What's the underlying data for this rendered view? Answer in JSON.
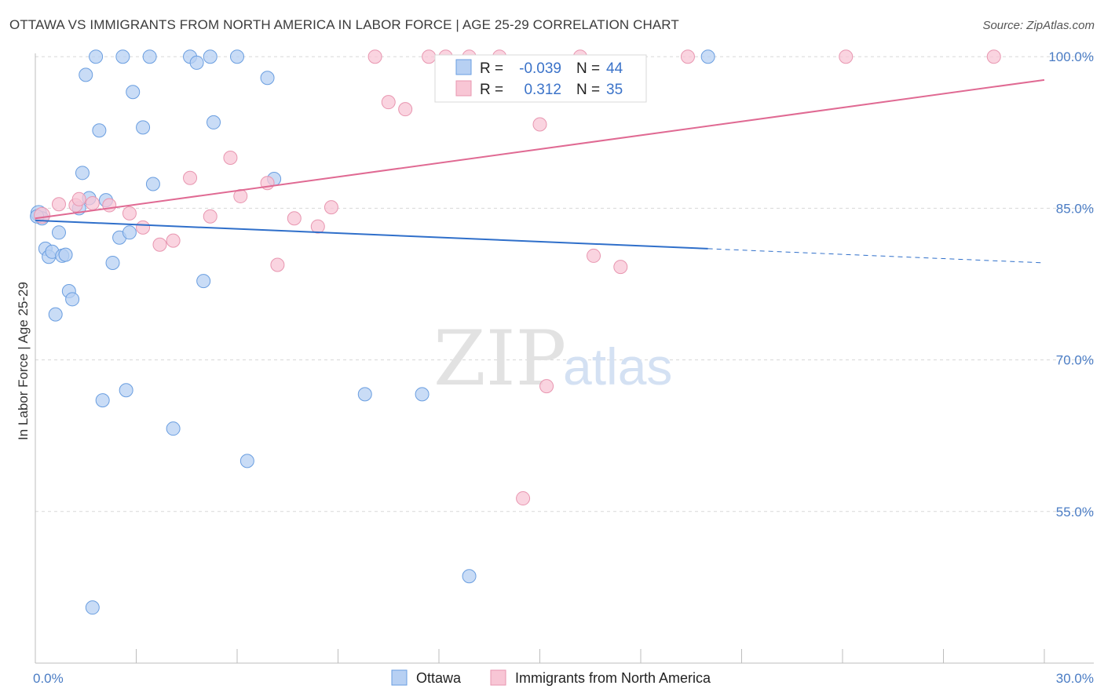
{
  "title": "OTTAWA VS IMMIGRANTS FROM NORTH AMERICA IN LABOR FORCE | AGE 25-29 CORRELATION CHART",
  "source": "Source: ZipAtlas.com",
  "watermark": {
    "zip": "ZIP",
    "atlas": "atlas"
  },
  "colors": {
    "ottawa_fill": "#b7d0f3",
    "ottawa_stroke": "#6a9ee0",
    "ottawa_line": "#2f6fca",
    "immigrants_fill": "#f8c6d5",
    "immigrants_stroke": "#e896b0",
    "immigrants_line": "#e06a93",
    "grid": "#d8d8d8",
    "tick_text": "#4a7cc4"
  },
  "legend": {
    "rows": [
      {
        "r_label": "R =",
        "r_value": "-0.039",
        "n_label": "N =",
        "n_value": "44"
      },
      {
        "r_label": "R =",
        "r_value": "0.312",
        "n_label": "N =",
        "n_value": "35"
      }
    ]
  },
  "chart_data": {
    "type": "scatter",
    "title": "OTTAWA VS IMMIGRANTS FROM NORTH AMERICA IN LABOR FORCE | AGE 25-29 CORRELATION CHART",
    "xlabel": "",
    "ylabel": "In Labor Force | Age 25-29",
    "xlim": [
      0,
      30
    ],
    "ylim": [
      40,
      102.5
    ],
    "x_tick_labels": [
      {
        "value": 0,
        "label": "0.0%"
      },
      {
        "value": 30,
        "label": "30.0%"
      }
    ],
    "y_tick_labels": [
      {
        "value": 100,
        "label": "100.0%"
      },
      {
        "value": 85,
        "label": "85.0%"
      },
      {
        "value": 70,
        "label": "70.0%"
      },
      {
        "value": 55,
        "label": "55.0%"
      }
    ],
    "grid": true,
    "legend_position": "top-center",
    "series": [
      {
        "name": "Ottawa",
        "r": -0.039,
        "n": 44,
        "trend": {
          "x": [
            0,
            20
          ],
          "y": [
            83.8,
            81.0
          ],
          "dashed_to_x": 30,
          "dashed_to_y": 79.6
        },
        "points": [
          [
            0.1,
            84.5
          ],
          [
            0.2,
            84.0
          ],
          [
            0.3,
            81.0
          ],
          [
            0.4,
            80.2
          ],
          [
            0.5,
            80.7
          ],
          [
            0.6,
            74.5
          ],
          [
            0.7,
            82.6
          ],
          [
            0.8,
            80.3
          ],
          [
            0.9,
            80.4
          ],
          [
            1.0,
            76.8
          ],
          [
            1.1,
            76.0
          ],
          [
            1.3,
            85.0
          ],
          [
            1.4,
            88.5
          ],
          [
            1.5,
            98.2
          ],
          [
            1.6,
            86.0
          ],
          [
            1.7,
            45.5
          ],
          [
            1.8,
            100.0
          ],
          [
            1.9,
            92.7
          ],
          [
            2.0,
            66.0
          ],
          [
            2.1,
            85.8
          ],
          [
            2.3,
            79.6
          ],
          [
            2.5,
            82.1
          ],
          [
            2.6,
            100.0
          ],
          [
            2.7,
            67.0
          ],
          [
            2.8,
            82.6
          ],
          [
            2.9,
            96.5
          ],
          [
            3.2,
            93.0
          ],
          [
            3.4,
            100.0
          ],
          [
            3.5,
            87.4
          ],
          [
            4.1,
            63.2
          ],
          [
            4.6,
            100.0
          ],
          [
            4.8,
            99.4
          ],
          [
            5.0,
            77.8
          ],
          [
            5.2,
            100.0
          ],
          [
            5.3,
            93.5
          ],
          [
            6.0,
            100.0
          ],
          [
            6.3,
            60.0
          ],
          [
            6.9,
            97.9
          ],
          [
            7.1,
            87.9
          ],
          [
            9.8,
            66.6
          ],
          [
            11.5,
            66.6
          ],
          [
            12.9,
            48.6
          ],
          [
            20.0,
            100.0
          ],
          [
            0.05,
            84.2
          ]
        ]
      },
      {
        "name": "Immigrants from North America",
        "r": 0.312,
        "n": 35,
        "trend": {
          "x": [
            0,
            30
          ],
          "y": [
            84.0,
            97.7
          ]
        },
        "points": [
          [
            0.2,
            84.3
          ],
          [
            0.7,
            85.4
          ],
          [
            1.2,
            85.3
          ],
          [
            1.3,
            85.9
          ],
          [
            1.7,
            85.5
          ],
          [
            2.2,
            85.3
          ],
          [
            2.8,
            84.5
          ],
          [
            3.2,
            83.1
          ],
          [
            3.7,
            81.4
          ],
          [
            4.1,
            81.8
          ],
          [
            4.6,
            88.0
          ],
          [
            5.2,
            84.2
          ],
          [
            5.8,
            90.0
          ],
          [
            6.1,
            86.2
          ],
          [
            6.9,
            87.5
          ],
          [
            7.2,
            79.4
          ],
          [
            7.7,
            84.0
          ],
          [
            8.4,
            83.2
          ],
          [
            8.8,
            85.1
          ],
          [
            10.1,
            100.0
          ],
          [
            10.5,
            95.5
          ],
          [
            11.0,
            94.8
          ],
          [
            11.7,
            100.0
          ],
          [
            12.2,
            100.0
          ],
          [
            12.9,
            100.0
          ],
          [
            13.8,
            100.0
          ],
          [
            14.5,
            56.3
          ],
          [
            15.0,
            93.3
          ],
          [
            15.2,
            67.4
          ],
          [
            16.2,
            100.0
          ],
          [
            16.6,
            80.3
          ],
          [
            17.4,
            79.2
          ],
          [
            19.4,
            100.0
          ],
          [
            24.1,
            100.0
          ],
          [
            28.5,
            100.0
          ]
        ]
      }
    ]
  }
}
